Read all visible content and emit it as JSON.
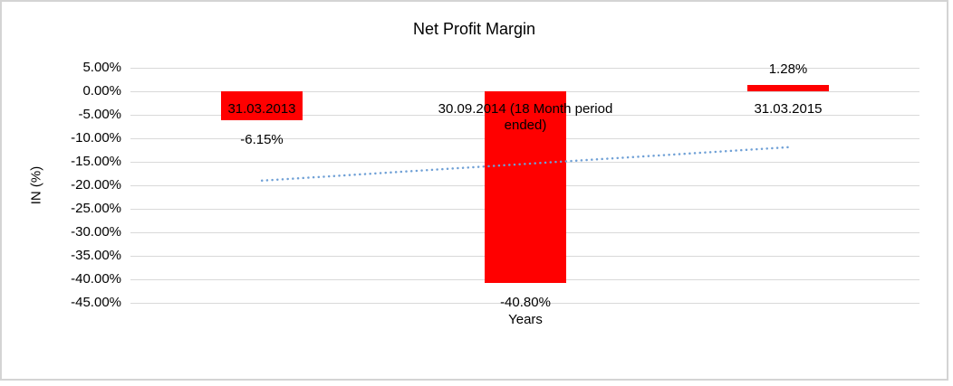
{
  "chart_data": {
    "type": "bar",
    "title": "Net Profit Margin",
    "xlabel": "Years",
    "ylabel": "IN (%)",
    "categories": [
      "31.03.2013",
      "30.09.2014 (18 Month period ended)",
      "31.03.2015"
    ],
    "category_display_lines": [
      [
        "31.03.2013"
      ],
      [
        "30.09.2014 (18 Month period",
        "ended)"
      ],
      [
        "31.03.2015"
      ]
    ],
    "values": [
      -6.15,
      -40.8,
      1.28
    ],
    "data_labels": [
      "-6.15%",
      "-40.80%",
      "1.28%"
    ],
    "ytick_values": [
      5,
      0,
      -5,
      -10,
      -15,
      -20,
      -25,
      -30,
      -35,
      -40,
      -45
    ],
    "ytick_labels": [
      "5.00%",
      "0.00%",
      "-5.00%",
      "-10.00%",
      "-15.00%",
      "-20.00%",
      "-25.00%",
      "-30.00%",
      "-35.00%",
      "-40.00%",
      "-45.00%"
    ],
    "ylim": [
      -45,
      5
    ],
    "grid": true,
    "legend": false,
    "trendline": {
      "type": "linear",
      "style": "dotted",
      "start_value": -19.0,
      "end_value": -11.9
    }
  },
  "colors": {
    "bar": "#FF0000",
    "trendline": "#6FA0D6",
    "gridline": "#D9D9D9",
    "frame_border": "#D4D4D4",
    "text": "#000000",
    "background": "#FFFFFF"
  }
}
